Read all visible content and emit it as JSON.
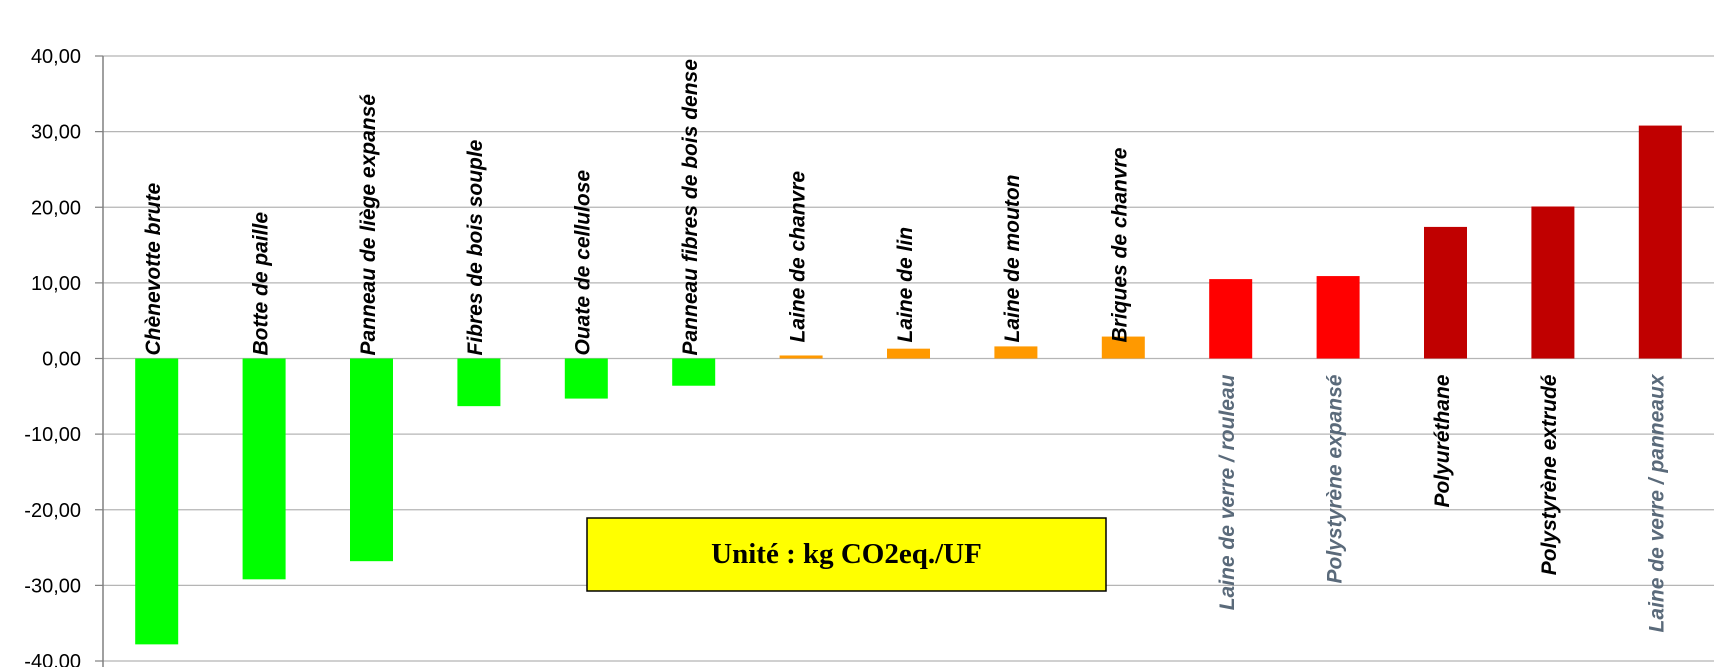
{
  "chart_data": {
    "type": "bar",
    "title": "",
    "xlabel": "",
    "ylabel": "",
    "ylim": [
      -40,
      40
    ],
    "y_ticks": [
      "40,00",
      "30,00",
      "20,00",
      "10,00",
      "0,00",
      "-10,00",
      "-20,00",
      "-30,00",
      "-40,00"
    ],
    "grid": "horizontal",
    "legend": "none",
    "annotation": "Unité : kg CO2eq./UF",
    "annotation_colors": {
      "fill": "#ffff00",
      "border": "#000000"
    },
    "categories": [
      "Chènevotte brute",
      "Botte de paille",
      "Panneau de liège expansé",
      "Fibres de bois souple",
      "Ouate de cellulose",
      "Panneau fibres de bois dense",
      "Laine de chanvre",
      "Laine de lin",
      "Laine de mouton",
      "Briques de chanvre",
      "Laine de verre / rouleau",
      "Polystyrène expansé",
      "Polyuréthane",
      "Polystyrène extrudé",
      "Laine de verre / panneaux"
    ],
    "values": [
      -37.8,
      -29.2,
      -26.8,
      -6.3,
      -5.3,
      -3.6,
      0.4,
      1.3,
      1.6,
      2.9,
      10.5,
      10.9,
      17.4,
      20.1,
      30.8
    ],
    "bar_colors": [
      "#00ff00",
      "#00ff00",
      "#00ff00",
      "#00ff00",
      "#00ff00",
      "#00ff00",
      "#ff9900",
      "#ff9900",
      "#ff9900",
      "#ff9900",
      "#ff0000",
      "#ff0000",
      "#c00000",
      "#c00000",
      "#c00000"
    ],
    "label_colors": [
      "#000000",
      "#000000",
      "#000000",
      "#000000",
      "#000000",
      "#000000",
      "#000000",
      "#000000",
      "#000000",
      "#000000",
      "#5a6a7a",
      "#5a6a7a",
      "#000000",
      "#000000",
      "#5a6a7a"
    ]
  }
}
